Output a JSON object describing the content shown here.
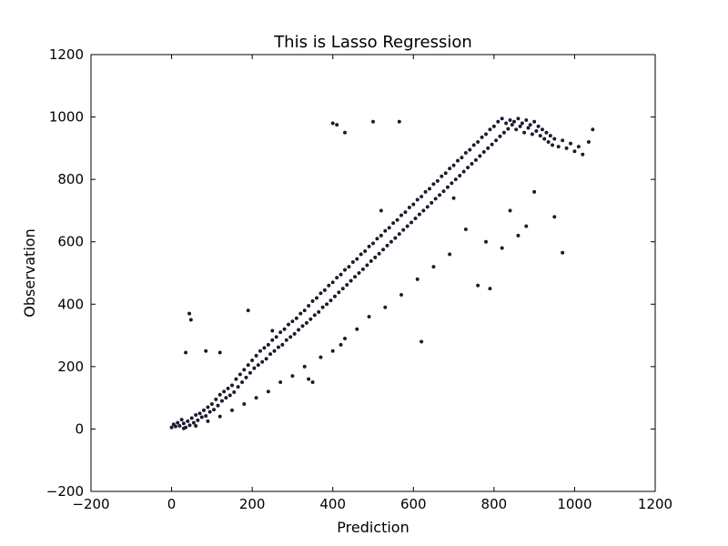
{
  "chart_data": {
    "type": "scatter",
    "title": "This is Lasso Regression",
    "xlabel": "Prediction",
    "ylabel": "Observation",
    "xlim": [
      -200,
      1200
    ],
    "ylim": [
      -200,
      1200
    ],
    "xticks": [
      "−200",
      "0",
      "200",
      "400",
      "600",
      "800",
      "1000",
      "1200"
    ],
    "yticks": [
      "−200",
      "0",
      "200",
      "400",
      "600",
      "800",
      "1000",
      "1200"
    ],
    "xtick_values": [
      -200,
      0,
      200,
      400,
      600,
      800,
      1000,
      1200
    ],
    "ytick_values": [
      -200,
      0,
      200,
      400,
      600,
      800,
      1000,
      1200
    ],
    "grid": false,
    "legend": "none",
    "marker_color": "#1b1b3a",
    "points": [
      [
        0,
        5
      ],
      [
        5,
        15
      ],
      [
        10,
        8
      ],
      [
        15,
        20
      ],
      [
        20,
        10
      ],
      [
        25,
        30
      ],
      [
        30,
        18
      ],
      [
        35,
        5
      ],
      [
        40,
        25
      ],
      [
        45,
        12
      ],
      [
        50,
        35
      ],
      [
        55,
        20
      ],
      [
        60,
        45
      ],
      [
        65,
        28
      ],
      [
        70,
        50
      ],
      [
        75,
        38
      ],
      [
        80,
        60
      ],
      [
        85,
        42
      ],
      [
        90,
        70
      ],
      [
        95,
        55
      ],
      [
        100,
        80
      ],
      [
        105,
        62
      ],
      [
        110,
        95
      ],
      [
        115,
        75
      ],
      [
        120,
        110
      ],
      [
        125,
        90
      ],
      [
        130,
        120
      ],
      [
        135,
        100
      ],
      [
        140,
        130
      ],
      [
        145,
        108
      ],
      [
        150,
        140
      ],
      [
        155,
        118
      ],
      [
        160,
        160
      ],
      [
        165,
        135
      ],
      [
        170,
        175
      ],
      [
        175,
        150
      ],
      [
        180,
        190
      ],
      [
        185,
        165
      ],
      [
        190,
        205
      ],
      [
        195,
        180
      ],
      [
        200,
        220
      ],
      [
        205,
        195
      ],
      [
        210,
        235
      ],
      [
        215,
        205
      ],
      [
        220,
        250
      ],
      [
        225,
        215
      ],
      [
        230,
        260
      ],
      [
        235,
        225
      ],
      [
        240,
        270
      ],
      [
        245,
        240
      ],
      [
        250,
        285
      ],
      [
        255,
        250
      ],
      [
        260,
        295
      ],
      [
        265,
        262
      ],
      [
        270,
        310
      ],
      [
        275,
        270
      ],
      [
        280,
        320
      ],
      [
        285,
        285
      ],
      [
        290,
        335
      ],
      [
        295,
        295
      ],
      [
        300,
        345
      ],
      [
        305,
        305
      ],
      [
        310,
        355
      ],
      [
        315,
        318
      ],
      [
        320,
        370
      ],
      [
        325,
        330
      ],
      [
        330,
        380
      ],
      [
        335,
        340
      ],
      [
        340,
        395
      ],
      [
        345,
        352
      ],
      [
        350,
        410
      ],
      [
        355,
        365
      ],
      [
        360,
        420
      ],
      [
        365,
        375
      ],
      [
        370,
        435
      ],
      [
        375,
        390
      ],
      [
        380,
        445
      ],
      [
        385,
        400
      ],
      [
        390,
        460
      ],
      [
        395,
        412
      ],
      [
        400,
        470
      ],
      [
        405,
        425
      ],
      [
        410,
        485
      ],
      [
        415,
        438
      ],
      [
        420,
        495
      ],
      [
        425,
        450
      ],
      [
        430,
        510
      ],
      [
        435,
        462
      ],
      [
        440,
        520
      ],
      [
        445,
        475
      ],
      [
        450,
        535
      ],
      [
        455,
        488
      ],
      [
        460,
        545
      ],
      [
        465,
        500
      ],
      [
        470,
        560
      ],
      [
        475,
        512
      ],
      [
        480,
        570
      ],
      [
        485,
        525
      ],
      [
        490,
        585
      ],
      [
        495,
        538
      ],
      [
        500,
        595
      ],
      [
        505,
        550
      ],
      [
        510,
        610
      ],
      [
        515,
        562
      ],
      [
        520,
        620
      ],
      [
        525,
        575
      ],
      [
        530,
        635
      ],
      [
        535,
        588
      ],
      [
        540,
        645
      ],
      [
        545,
        600
      ],
      [
        550,
        660
      ],
      [
        555,
        612
      ],
      [
        560,
        670
      ],
      [
        565,
        625
      ],
      [
        570,
        685
      ],
      [
        575,
        638
      ],
      [
        580,
        695
      ],
      [
        585,
        650
      ],
      [
        590,
        710
      ],
      [
        595,
        662
      ],
      [
        600,
        720
      ],
      [
        605,
        675
      ],
      [
        610,
        735
      ],
      [
        615,
        688
      ],
      [
        620,
        745
      ],
      [
        625,
        700
      ],
      [
        630,
        760
      ],
      [
        635,
        712
      ],
      [
        640,
        770
      ],
      [
        645,
        725
      ],
      [
        650,
        785
      ],
      [
        655,
        738
      ],
      [
        660,
        795
      ],
      [
        665,
        750
      ],
      [
        670,
        810
      ],
      [
        675,
        762
      ],
      [
        680,
        820
      ],
      [
        685,
        775
      ],
      [
        690,
        835
      ],
      [
        695,
        788
      ],
      [
        700,
        845
      ],
      [
        705,
        800
      ],
      [
        710,
        860
      ],
      [
        715,
        812
      ],
      [
        720,
        870
      ],
      [
        725,
        825
      ],
      [
        730,
        885
      ],
      [
        735,
        838
      ],
      [
        740,
        895
      ],
      [
        745,
        850
      ],
      [
        750,
        910
      ],
      [
        755,
        862
      ],
      [
        760,
        920
      ],
      [
        765,
        875
      ],
      [
        770,
        935
      ],
      [
        775,
        888
      ],
      [
        780,
        945
      ],
      [
        785,
        900
      ],
      [
        790,
        960
      ],
      [
        795,
        912
      ],
      [
        800,
        970
      ],
      [
        805,
        925
      ],
      [
        810,
        985
      ],
      [
        815,
        938
      ],
      [
        820,
        995
      ],
      [
        825,
        950
      ],
      [
        830,
        980
      ],
      [
        835,
        962
      ],
      [
        840,
        990
      ],
      [
        845,
        975
      ],
      [
        850,
        985
      ],
      [
        855,
        960
      ],
      [
        860,
        995
      ],
      [
        865,
        970
      ],
      [
        870,
        980
      ],
      [
        875,
        950
      ],
      [
        880,
        990
      ],
      [
        885,
        965
      ],
      [
        890,
        975
      ],
      [
        895,
        945
      ],
      [
        900,
        985
      ],
      [
        905,
        955
      ],
      [
        910,
        970
      ],
      [
        915,
        940
      ],
      [
        920,
        960
      ],
      [
        925,
        930
      ],
      [
        930,
        950
      ],
      [
        935,
        920
      ],
      [
        940,
        940
      ],
      [
        945,
        910
      ],
      [
        950,
        930
      ],
      [
        960,
        905
      ],
      [
        970,
        925
      ],
      [
        980,
        900
      ],
      [
        990,
        915
      ],
      [
        1000,
        890
      ],
      [
        1010,
        905
      ],
      [
        1020,
        880
      ],
      [
        1035,
        920
      ],
      [
        1045,
        960
      ],
      [
        35,
        245
      ],
      [
        48,
        350
      ],
      [
        44,
        370
      ],
      [
        85,
        250
      ],
      [
        120,
        245
      ],
      [
        190,
        380
      ],
      [
        250,
        315
      ],
      [
        400,
        980
      ],
      [
        410,
        975
      ],
      [
        430,
        950
      ],
      [
        500,
        985
      ],
      [
        565,
        985
      ],
      [
        340,
        160
      ],
      [
        350,
        150
      ],
      [
        420,
        270
      ],
      [
        520,
        700
      ],
      [
        620,
        280
      ],
      [
        700,
        740
      ],
      [
        760,
        460
      ],
      [
        790,
        450
      ],
      [
        820,
        580
      ],
      [
        860,
        620
      ],
      [
        900,
        760
      ],
      [
        970,
        565
      ],
      [
        950,
        680
      ],
      [
        880,
        650
      ],
      [
        840,
        700
      ],
      [
        780,
        600
      ],
      [
        730,
        640
      ],
      [
        690,
        560
      ],
      [
        650,
        520
      ],
      [
        610,
        480
      ],
      [
        570,
        430
      ],
      [
        530,
        390
      ],
      [
        490,
        360
      ],
      [
        460,
        320
      ],
      [
        430,
        290
      ],
      [
        400,
        250
      ],
      [
        370,
        230
      ],
      [
        330,
        200
      ],
      [
        300,
        170
      ],
      [
        270,
        150
      ],
      [
        240,
        120
      ],
      [
        210,
        100
      ],
      [
        180,
        80
      ],
      [
        150,
        60
      ],
      [
        120,
        40
      ],
      [
        90,
        25
      ],
      [
        60,
        10
      ],
      [
        30,
        2
      ]
    ]
  }
}
